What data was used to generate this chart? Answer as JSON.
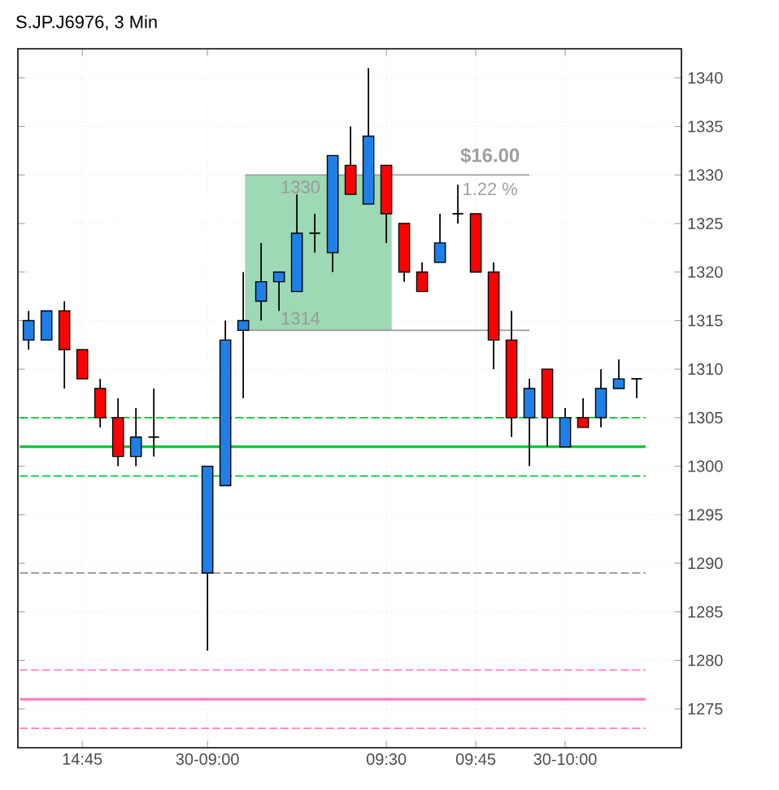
{
  "chart_data": {
    "type": "candlestick",
    "title": "S.JP.J6976, 3 Min",
    "categories": [
      null,
      null,
      null,
      "14:45",
      null,
      null,
      null,
      null,
      null,
      null,
      "30-09:00",
      null,
      null,
      null,
      null,
      null,
      null,
      null,
      null,
      null,
      "09:30",
      null,
      null,
      null,
      null,
      "09:45",
      null,
      null,
      null,
      null,
      "30-10:00",
      null,
      null,
      null,
      null
    ],
    "ohlc": [
      [
        1313,
        1316,
        1312,
        1315
      ],
      [
        1313,
        1316,
        1313,
        1316
      ],
      [
        1316,
        1317,
        1308,
        1312
      ],
      [
        1312,
        1312,
        1309,
        1309
      ],
      [
        1308,
        1309,
        1304,
        1305
      ],
      [
        1305,
        1307,
        1300,
        1301
      ],
      [
        1301,
        1306,
        1300,
        1303
      ],
      [
        1303,
        1308,
        1301,
        1303
      ],
      null,
      null,
      [
        1289,
        1300,
        1281,
        1300
      ],
      [
        1298,
        1315,
        1298,
        1313
      ],
      [
        1314,
        1320,
        1307,
        1315
      ],
      [
        1317,
        1323,
        1315,
        1319
      ],
      [
        1319,
        1320,
        1316,
        1320
      ],
      [
        1318,
        1328,
        1318,
        1324
      ],
      [
        1324,
        1326,
        1322,
        1324
      ],
      [
        1322,
        1332,
        1320,
        1332
      ],
      [
        1331,
        1335,
        1328,
        1328
      ],
      [
        1327,
        1341,
        1327,
        1334
      ],
      [
        1331,
        1331,
        1323,
        1326
      ],
      [
        1325,
        1325,
        1319,
        1320
      ],
      [
        1320,
        1321,
        1318,
        1318
      ],
      [
        1321,
        1326,
        1321,
        1323
      ],
      [
        1326,
        1329,
        1325,
        1326
      ],
      [
        1326,
        1326,
        1320,
        1320
      ],
      [
        1320,
        1321,
        1310,
        1313
      ],
      [
        1313,
        1316,
        1303,
        1305
      ],
      [
        1305,
        1309,
        1300,
        1308
      ],
      [
        1310,
        1310,
        1302,
        1305
      ],
      [
        1302,
        1306,
        1302,
        1305
      ],
      [
        1305,
        1307,
        1304,
        1304
      ],
      [
        1305,
        1310,
        1304,
        1308
      ],
      [
        1308,
        1311,
        1308,
        1309
      ],
      [
        1309,
        1309,
        1307,
        1309
      ]
    ],
    "colors": [
      "#1e7fe8",
      "#1e7fe8",
      "#ff0000",
      "#ff0000",
      "#ff0000",
      "#ff0000",
      "#1e7fe8",
      "#000000",
      null,
      null,
      "#1e7fe8",
      "#1e7fe8",
      "#1e7fe8",
      "#1e7fe8",
      "#1e7fe8",
      "#1e7fe8",
      "#000000",
      "#1e7fe8",
      "#ff0000",
      "#1e7fe8",
      "#ff0000",
      "#ff0000",
      "#ff0000",
      "#1e7fe8",
      "#000000",
      "#ff0000",
      "#ff0000",
      "#ff0000",
      "#1e7fe8",
      "#ff0000",
      "#1e7fe8",
      "#ff0000",
      "#1e7fe8",
      "#1e7fe8",
      "#000000"
    ],
    "ylim": [
      1271,
      1343
    ],
    "yticks": [
      1275,
      1280,
      1285,
      1290,
      1295,
      1300,
      1305,
      1310,
      1315,
      1320,
      1325,
      1330,
      1335,
      1340
    ],
    "grid": true,
    "ref_lines": [
      {
        "axis": "y",
        "value": 1305,
        "color": "#00cc33",
        "line_style": "dashed"
      },
      {
        "axis": "y",
        "value": 1302,
        "color": "#00cc33",
        "line_style": "solid"
      },
      {
        "axis": "y",
        "value": 1299,
        "color": "#00cc33",
        "line_style": "dashed"
      },
      {
        "axis": "y",
        "value": 1289,
        "color": "#a0a0a0",
        "line_style": "dashed"
      },
      {
        "axis": "y",
        "value": 1279,
        "color": "#ff80c0",
        "line_style": "dashed"
      },
      {
        "axis": "y",
        "value": 1276,
        "color": "#ff80c0",
        "line_style": "solid"
      },
      {
        "axis": "y",
        "value": 1273,
        "color": "#ff80c0",
        "line_style": "dashed"
      },
      {
        "axis": "y",
        "value": 1330,
        "color": "#999999",
        "line_style": "solid"
      },
      {
        "axis": "y",
        "value": 1314,
        "color": "#999999",
        "line_style": "solid"
      }
    ],
    "bands": [
      {
        "axis": "y",
        "from": 1314,
        "to": 1330,
        "color": "#9dd9b4"
      }
    ],
    "annotations": [
      "$16.00",
      "1.22 %",
      {
        "text": "1330",
        "y": 1330
      },
      {
        "text": "1314",
        "y": 1314
      }
    ]
  }
}
